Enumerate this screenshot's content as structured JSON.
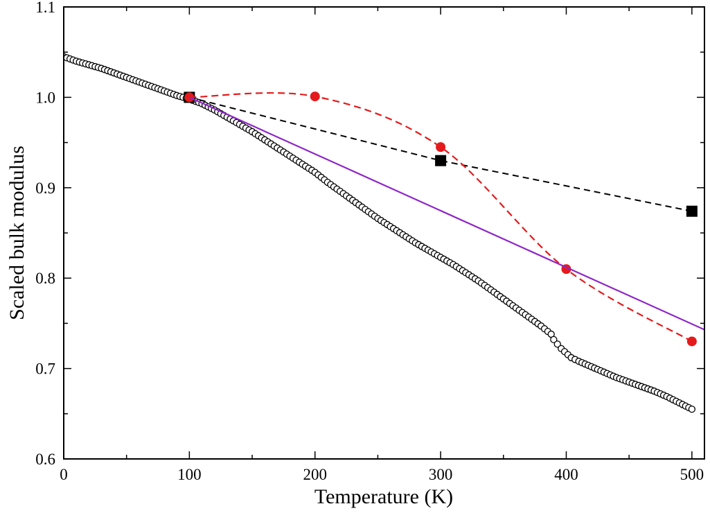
{
  "chart_data": {
    "type": "scatter",
    "title": "",
    "xlabel": "Temperature (K)",
    "ylabel": "Scaled bulk modulus",
    "xlim": [
      0,
      510
    ],
    "ylim": [
      0.6,
      1.1
    ],
    "x_ticks": [
      0,
      100,
      200,
      300,
      400,
      500
    ],
    "y_ticks": [
      0.6,
      0.7,
      0.8,
      0.9,
      1.0,
      1.1
    ],
    "x_tick_labels": [
      "0",
      "100",
      "200",
      "300",
      "400",
      "500"
    ],
    "y_tick_labels": [
      "0.6",
      "0.7",
      "0.8",
      "0.9",
      "1.0",
      "1.1"
    ],
    "grid": false,
    "legend": "none",
    "series": [
      {
        "style": "open-circles",
        "color": "#000000",
        "x": [
          0,
          10,
          20,
          30,
          40,
          50,
          60,
          70,
          80,
          90,
          100,
          110,
          120,
          130,
          140,
          150,
          160,
          170,
          180,
          190,
          200,
          210,
          220,
          230,
          240,
          250,
          260,
          270,
          280,
          290,
          300,
          310,
          320,
          330,
          340,
          350,
          360,
          370,
          380,
          388,
          390,
          396,
          404,
          410,
          420,
          430,
          440,
          450,
          460,
          470,
          480,
          490,
          500
        ],
        "y": [
          1.045,
          1.04,
          1.036,
          1.032,
          1.027,
          1.022,
          1.017,
          1.012,
          1.007,
          1.002,
          0.998,
          0.993,
          0.986,
          0.978,
          0.97,
          0.962,
          0.953,
          0.944,
          0.935,
          0.926,
          0.917,
          0.906,
          0.896,
          0.886,
          0.876,
          0.866,
          0.857,
          0.848,
          0.839,
          0.831,
          0.823,
          0.815,
          0.806,
          0.797,
          0.787,
          0.777,
          0.767,
          0.757,
          0.747,
          0.738,
          0.732,
          0.722,
          0.712,
          0.708,
          0.702,
          0.696,
          0.69,
          0.685,
          0.68,
          0.675,
          0.669,
          0.662,
          0.655
        ]
      },
      {
        "style": "dashed-line-squares",
        "color": "#000000",
        "x": [
          100,
          300,
          500
        ],
        "y": [
          1.0,
          0.93,
          0.874
        ]
      },
      {
        "style": "dashed-curve-filled-circles",
        "color": "#e41a1c",
        "x": [
          100,
          200,
          300,
          400,
          500
        ],
        "y": [
          1.0,
          1.001,
          0.945,
          0.81,
          0.73
        ]
      },
      {
        "style": "solid-line",
        "color": "#8e24c8",
        "x": [
          100,
          510
        ],
        "y": [
          1.0,
          0.743
        ]
      }
    ]
  }
}
